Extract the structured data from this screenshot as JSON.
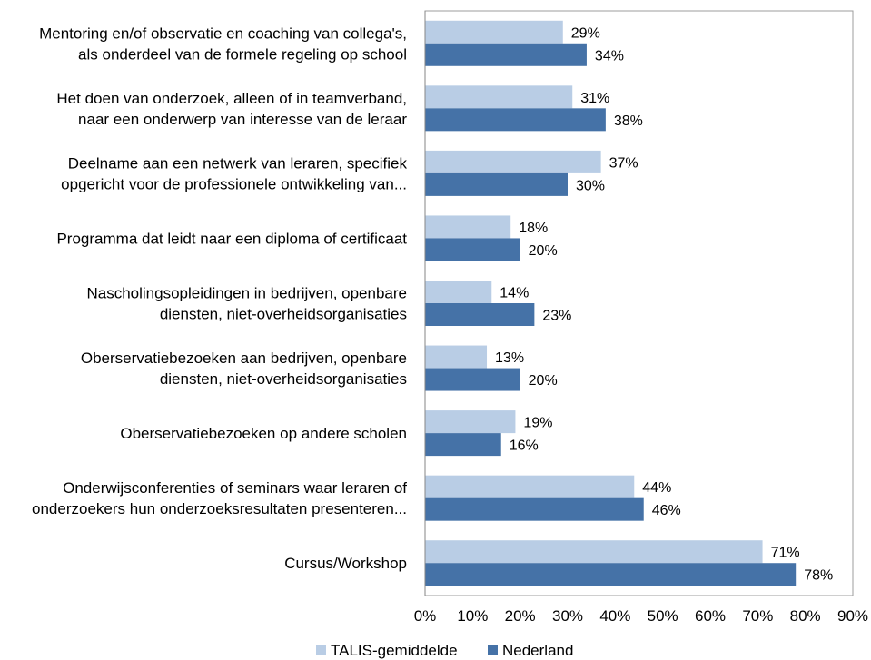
{
  "chart_data": {
    "type": "bar",
    "orientation": "horizontal",
    "categories": [
      [
        "Mentoring en/of observatie en coaching van collega's,",
        "als onderdeel van de formele regeling op school"
      ],
      [
        "Het doen van onderzoek, alleen of in teamverband,",
        "naar een onderwerp van interesse van de leraar"
      ],
      [
        "Deelname aan een netwerk van leraren, specifiek",
        "opgericht voor de professionele ontwikkeling van..."
      ],
      [
        "Programma dat leidt naar een diploma of certificaat"
      ],
      [
        "Nascholingsopleidingen in bedrijven, openbare",
        "diensten, niet-overheidsorganisaties"
      ],
      [
        "Oberservatiebezoeken aan bedrijven, openbare",
        "diensten, niet-overheidsorganisaties"
      ],
      [
        "Oberservatiebezoeken op andere scholen"
      ],
      [
        "Onderwijsconferenties of seminars waar leraren of",
        "onderzoekers hun onderzoeksresultaten presenteren..."
      ],
      [
        "Cursus/Workshop"
      ]
    ],
    "series": [
      {
        "name": "TALIS-gemiddelde",
        "color": "#b9cde5",
        "values": [
          29,
          31,
          37,
          18,
          14,
          13,
          19,
          44,
          71
        ],
        "labels": [
          "29%",
          "31%",
          "37%",
          "18%",
          "14%",
          "13%",
          "19%",
          "44%",
          "71%"
        ]
      },
      {
        "name": "Nederland",
        "color": "#4572a7",
        "values": [
          34,
          38,
          30,
          20,
          23,
          20,
          16,
          46,
          78
        ],
        "labels": [
          "34%",
          "38%",
          "30%",
          "20%",
          "23%",
          "20%",
          "16%",
          "46%",
          "78%"
        ]
      }
    ],
    "xlim": [
      0,
      90
    ],
    "x_ticks": [
      0,
      10,
      20,
      30,
      40,
      50,
      60,
      70,
      80,
      90
    ],
    "x_tick_labels": [
      "0%",
      "10%",
      "20%",
      "30%",
      "40%",
      "50%",
      "60%",
      "70%",
      "80%",
      "90%"
    ],
    "grid": false,
    "legend_position": "bottom"
  }
}
